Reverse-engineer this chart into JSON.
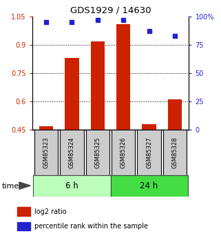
{
  "title": "GDS1929 / 14630",
  "samples": [
    "GSM85323",
    "GSM85324",
    "GSM85325",
    "GSM85326",
    "GSM85327",
    "GSM85328"
  ],
  "log2_ratio": [
    0.47,
    0.83,
    0.92,
    1.01,
    0.48,
    0.61
  ],
  "percentile_rank": [
    95,
    95,
    97,
    97,
    87,
    83
  ],
  "bar_color": "#cc2200",
  "dot_color": "#2222cc",
  "ylim_left": [
    0.45,
    1.05
  ],
  "ylim_right": [
    0,
    100
  ],
  "yticks_left": [
    0.45,
    0.6,
    0.75,
    0.9,
    1.05
  ],
  "yticks_right": [
    0,
    25,
    50,
    75,
    100
  ],
  "ytick_labels_left": [
    "0.45",
    "0.6",
    "0.75",
    "0.9",
    "1.05"
  ],
  "ytick_labels_right": [
    "0",
    "25",
    "50",
    "75",
    "100%"
  ],
  "groups": [
    {
      "label": "6 h",
      "indices": [
        0,
        1,
        2
      ],
      "color": "#bbffbb"
    },
    {
      "label": "24 h",
      "indices": [
        3,
        4,
        5
      ],
      "color": "#44dd44"
    }
  ],
  "time_label": "time",
  "legend_items": [
    {
      "label": "log2 ratio",
      "color": "#cc2200"
    },
    {
      "label": "percentile rank within the sample",
      "color": "#2222cc"
    }
  ],
  "bar_bottom": 0.45,
  "dotted_lines": [
    0.6,
    0.75,
    0.9
  ],
  "sample_box_color": "#cccccc"
}
